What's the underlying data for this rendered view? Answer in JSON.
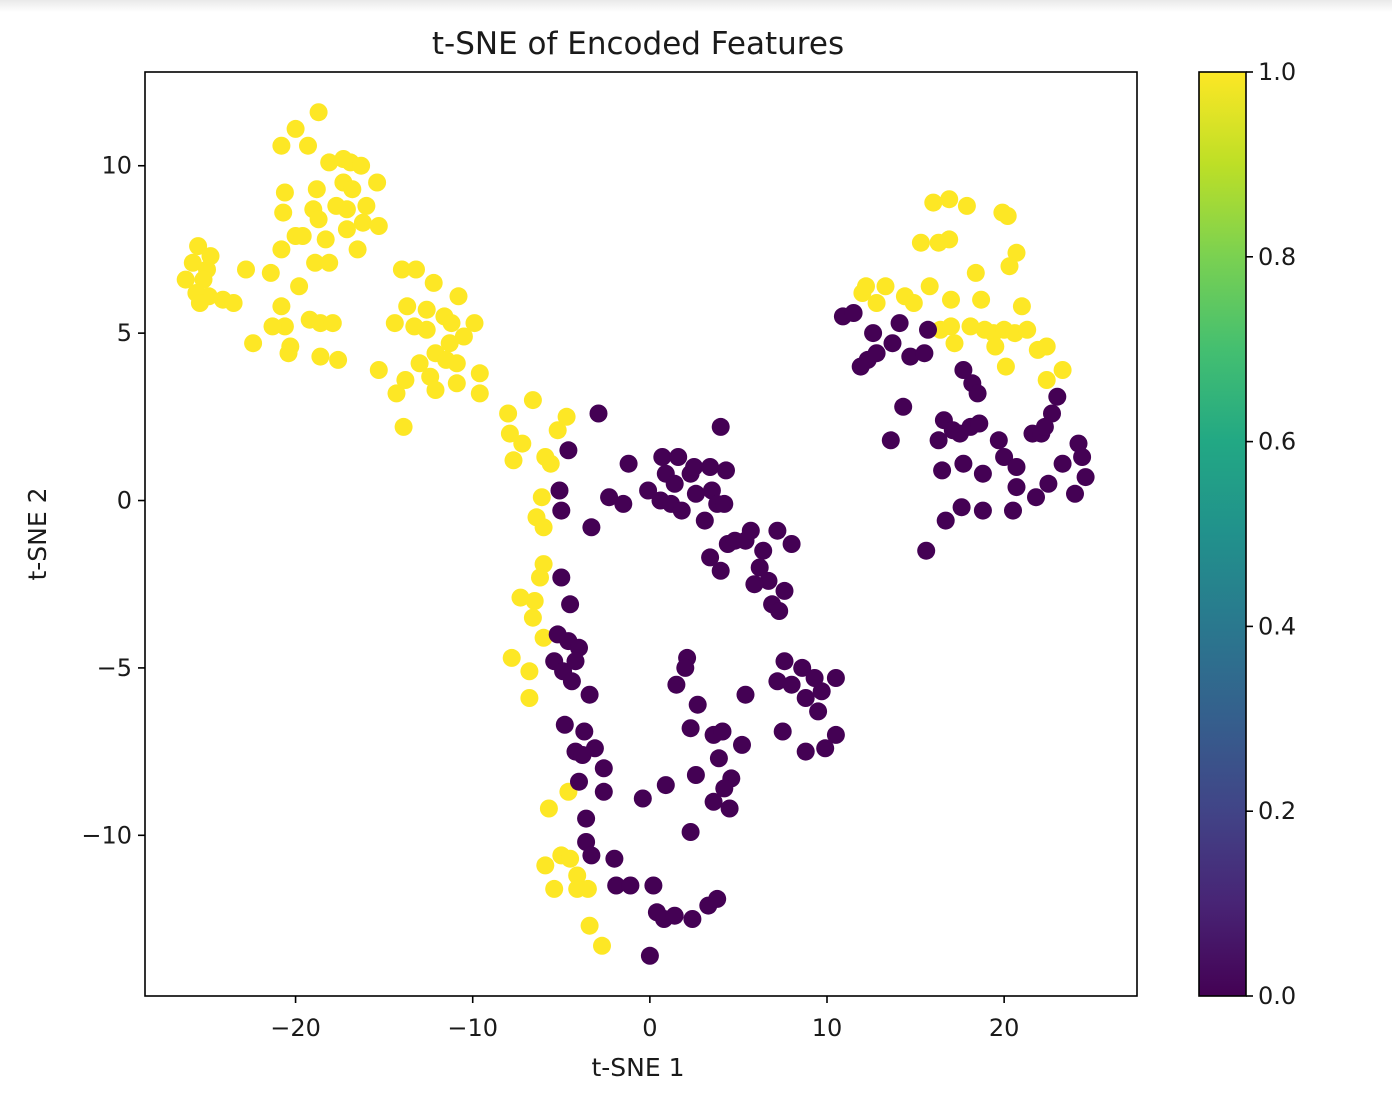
{
  "chart_data": {
    "type": "scatter",
    "title": "t-SNE of Encoded Features",
    "xlabel": "t-SNE 1",
    "ylabel": "t-SNE 2",
    "xlim": [
      -28.5,
      27.5
    ],
    "ylim": [
      -14.8,
      12.8
    ],
    "x_ticks": [
      -20,
      -10,
      0,
      10,
      20
    ],
    "y_ticks": [
      -10,
      -5,
      0,
      5,
      10
    ],
    "x_tick_labels": [
      "−20",
      "−10",
      "0",
      "10",
      "20"
    ],
    "y_tick_labels": [
      "−10",
      "−5",
      "0",
      "5",
      "10"
    ],
    "colorbar": {
      "colormap": "viridis",
      "range": [
        0.0,
        1.0
      ],
      "ticks": [
        0.0,
        0.2,
        0.4,
        0.6,
        0.8,
        1.0
      ],
      "tick_labels": [
        "0.0",
        "0.2",
        "0.4",
        "0.6",
        "0.8",
        "1.0"
      ]
    },
    "colors": {
      "label_0": "#440154",
      "label_1": "#fde725"
    },
    "grid": false,
    "series": [
      {
        "label_value": 1,
        "points": [
          [
            -18.7,
            11.6
          ],
          [
            -20.0,
            11.1
          ],
          [
            -19.3,
            10.6
          ],
          [
            -20.8,
            10.6
          ],
          [
            -18.1,
            10.1
          ],
          [
            -17.3,
            10.2
          ],
          [
            -16.9,
            10.1
          ],
          [
            -16.3,
            10.0
          ],
          [
            -15.4,
            9.5
          ],
          [
            -17.3,
            9.5
          ],
          [
            -16.8,
            9.3
          ],
          [
            -18.8,
            9.3
          ],
          [
            -20.6,
            9.2
          ],
          [
            -17.7,
            8.8
          ],
          [
            -16.0,
            8.8
          ],
          [
            -19.0,
            8.7
          ],
          [
            -20.7,
            8.6
          ],
          [
            -18.7,
            8.4
          ],
          [
            -17.1,
            8.7
          ],
          [
            -16.2,
            8.3
          ],
          [
            -15.3,
            8.2
          ],
          [
            -17.1,
            8.1
          ],
          [
            -20.0,
            7.9
          ],
          [
            -19.6,
            7.9
          ],
          [
            -18.3,
            7.8
          ],
          [
            -16.5,
            7.5
          ],
          [
            -20.8,
            7.5
          ],
          [
            -18.9,
            7.1
          ],
          [
            -18.1,
            7.1
          ],
          [
            -25.5,
            7.6
          ],
          [
            -24.8,
            7.3
          ],
          [
            -25.8,
            7.1
          ],
          [
            -25.0,
            6.9
          ],
          [
            -25.2,
            6.6
          ],
          [
            -26.2,
            6.6
          ],
          [
            -25.6,
            6.2
          ],
          [
            -24.9,
            6.1
          ],
          [
            -25.4,
            5.9
          ],
          [
            -24.1,
            6.0
          ],
          [
            -23.5,
            5.9
          ],
          [
            -22.8,
            6.9
          ],
          [
            -21.4,
            6.8
          ],
          [
            -20.8,
            5.8
          ],
          [
            -19.8,
            6.4
          ],
          [
            -20.6,
            5.2
          ],
          [
            -21.3,
            5.2
          ],
          [
            -19.2,
            5.4
          ],
          [
            -18.6,
            5.3
          ],
          [
            -17.9,
            5.3
          ],
          [
            -20.3,
            4.6
          ],
          [
            -20.4,
            4.4
          ],
          [
            -18.6,
            4.3
          ],
          [
            -17.6,
            4.2
          ],
          [
            -22.4,
            4.7
          ],
          [
            -14.0,
            6.9
          ],
          [
            -13.2,
            6.9
          ],
          [
            -12.2,
            6.5
          ],
          [
            -13.7,
            5.8
          ],
          [
            -12.6,
            5.7
          ],
          [
            -14.4,
            5.3
          ],
          [
            -13.3,
            5.2
          ],
          [
            -12.6,
            5.1
          ],
          [
            -11.6,
            5.5
          ],
          [
            -11.2,
            5.3
          ],
          [
            -10.8,
            6.1
          ],
          [
            -9.9,
            5.3
          ],
          [
            -10.5,
            4.9
          ],
          [
            -11.3,
            4.7
          ],
          [
            -12.1,
            4.4
          ],
          [
            -11.5,
            4.2
          ],
          [
            -10.9,
            4.1
          ],
          [
            -13.0,
            4.1
          ],
          [
            -15.3,
            3.9
          ],
          [
            -13.8,
            3.6
          ],
          [
            -14.3,
            3.2
          ],
          [
            -12.4,
            3.7
          ],
          [
            -12.1,
            3.3
          ],
          [
            -10.9,
            3.5
          ],
          [
            -9.6,
            3.8
          ],
          [
            -9.6,
            3.2
          ],
          [
            -13.9,
            2.2
          ],
          [
            -8.0,
            2.6
          ],
          [
            -6.6,
            3.0
          ],
          [
            -7.9,
            2.0
          ],
          [
            -7.2,
            1.7
          ],
          [
            -5.2,
            2.1
          ],
          [
            -4.7,
            2.5
          ],
          [
            -7.7,
            1.2
          ],
          [
            -5.9,
            1.3
          ],
          [
            -5.6,
            1.1
          ],
          [
            -6.1,
            0.1
          ],
          [
            -6.4,
            -0.5
          ],
          [
            -6.0,
            -0.8
          ],
          [
            -6.0,
            -1.9
          ],
          [
            -6.2,
            -2.3
          ],
          [
            -7.3,
            -2.9
          ],
          [
            -6.5,
            -3.0
          ],
          [
            -6.6,
            -3.5
          ],
          [
            -6.0,
            -4.1
          ],
          [
            -7.8,
            -4.7
          ],
          [
            -6.8,
            -5.1
          ],
          [
            -6.8,
            -5.9
          ],
          [
            -5.7,
            -9.2
          ],
          [
            -4.6,
            -8.7
          ],
          [
            -5.9,
            -10.9
          ],
          [
            -5.0,
            -10.6
          ],
          [
            -4.5,
            -10.7
          ],
          [
            -5.4,
            -11.6
          ],
          [
            -4.1,
            -11.2
          ],
          [
            -4.1,
            -11.6
          ],
          [
            -3.5,
            -11.6
          ],
          [
            -3.4,
            -12.7
          ],
          [
            -2.7,
            -13.3
          ],
          [
            16.0,
            8.9
          ],
          [
            16.9,
            9.0
          ],
          [
            17.9,
            8.8
          ],
          [
            19.9,
            8.6
          ],
          [
            20.2,
            8.5
          ],
          [
            15.3,
            7.7
          ],
          [
            16.3,
            7.7
          ],
          [
            16.9,
            7.8
          ],
          [
            20.7,
            7.4
          ],
          [
            18.4,
            6.8
          ],
          [
            20.3,
            7.0
          ],
          [
            12.0,
            6.2
          ],
          [
            12.2,
            6.4
          ],
          [
            13.3,
            6.4
          ],
          [
            14.4,
            6.1
          ],
          [
            15.8,
            6.4
          ],
          [
            12.8,
            5.9
          ],
          [
            14.9,
            5.9
          ],
          [
            17.0,
            6.0
          ],
          [
            18.7,
            6.0
          ],
          [
            21.0,
            5.8
          ],
          [
            16.4,
            5.1
          ],
          [
            17.0,
            5.2
          ],
          [
            18.1,
            5.2
          ],
          [
            18.9,
            5.1
          ],
          [
            19.4,
            5.0
          ],
          [
            20.0,
            5.1
          ],
          [
            20.6,
            5.0
          ],
          [
            21.3,
            5.1
          ],
          [
            17.2,
            4.7
          ],
          [
            19.5,
            4.6
          ],
          [
            21.9,
            4.5
          ],
          [
            22.4,
            4.6
          ],
          [
            20.1,
            4.0
          ],
          [
            23.3,
            3.9
          ],
          [
            22.4,
            3.6
          ]
        ]
      },
      {
        "label_value": 0,
        "points": [
          [
            -2.9,
            2.6
          ],
          [
            -4.6,
            1.5
          ],
          [
            -5.1,
            0.3
          ],
          [
            -5.0,
            -0.3
          ],
          [
            -3.3,
            -0.8
          ],
          [
            -2.3,
            0.1
          ],
          [
            -1.5,
            -0.1
          ],
          [
            -1.2,
            1.1
          ],
          [
            -0.1,
            0.3
          ],
          [
            0.7,
            1.3
          ],
          [
            1.6,
            1.3
          ],
          [
            0.9,
            0.8
          ],
          [
            1.4,
            0.5
          ],
          [
            2.3,
            0.8
          ],
          [
            2.5,
            1.0
          ],
          [
            3.4,
            1.0
          ],
          [
            4.0,
            2.2
          ],
          [
            4.3,
            0.9
          ],
          [
            0.6,
            0.0
          ],
          [
            1.2,
            -0.1
          ],
          [
            1.8,
            -0.3
          ],
          [
            2.6,
            0.2
          ],
          [
            3.1,
            -0.6
          ],
          [
            3.5,
            0.3
          ],
          [
            3.8,
            -0.1
          ],
          [
            4.2,
            -0.1
          ],
          [
            4.4,
            -1.3
          ],
          [
            4.8,
            -1.2
          ],
          [
            5.4,
            -1.2
          ],
          [
            5.7,
            -0.9
          ],
          [
            6.4,
            -1.5
          ],
          [
            7.2,
            -0.9
          ],
          [
            8.0,
            -1.3
          ],
          [
            3.4,
            -1.7
          ],
          [
            4.0,
            -2.1
          ],
          [
            6.2,
            -2.0
          ],
          [
            6.7,
            -2.4
          ],
          [
            5.9,
            -2.5
          ],
          [
            7.6,
            -2.7
          ],
          [
            6.9,
            -3.1
          ],
          [
            7.3,
            -3.3
          ],
          [
            -5.0,
            -2.3
          ],
          [
            -4.5,
            -3.1
          ],
          [
            -5.2,
            -4.0
          ],
          [
            -4.6,
            -4.2
          ],
          [
            -4.0,
            -4.4
          ],
          [
            -5.4,
            -4.8
          ],
          [
            -4.2,
            -4.8
          ],
          [
            -4.9,
            -5.1
          ],
          [
            -4.4,
            -5.4
          ],
          [
            -3.4,
            -5.8
          ],
          [
            -4.8,
            -6.7
          ],
          [
            -3.7,
            -6.9
          ],
          [
            -4.2,
            -7.5
          ],
          [
            -3.1,
            -7.4
          ],
          [
            -3.8,
            -7.6
          ],
          [
            -2.6,
            -8.0
          ],
          [
            -4.0,
            -8.4
          ],
          [
            -2.6,
            -8.7
          ],
          [
            -3.6,
            -9.5
          ],
          [
            -3.6,
            -10.2
          ],
          [
            -3.3,
            -10.6
          ],
          [
            -2.0,
            -10.7
          ],
          [
            -1.9,
            -11.5
          ],
          [
            -1.1,
            -11.5
          ],
          [
            0.2,
            -11.5
          ],
          [
            -0.4,
            -8.9
          ],
          [
            0.9,
            -8.5
          ],
          [
            2.1,
            -4.7
          ],
          [
            2.0,
            -5.0
          ],
          [
            1.5,
            -5.5
          ],
          [
            2.7,
            -6.1
          ],
          [
            2.3,
            -6.8
          ],
          [
            3.6,
            -7.0
          ],
          [
            4.1,
            -6.9
          ],
          [
            5.2,
            -7.3
          ],
          [
            3.9,
            -7.7
          ],
          [
            2.6,
            -8.2
          ],
          [
            4.6,
            -8.3
          ],
          [
            4.2,
            -8.6
          ],
          [
            3.6,
            -9.0
          ],
          [
            4.5,
            -9.2
          ],
          [
            2.3,
            -9.9
          ],
          [
            5.4,
            -5.8
          ],
          [
            7.6,
            -4.8
          ],
          [
            8.6,
            -5.0
          ],
          [
            9.3,
            -5.3
          ],
          [
            7.2,
            -5.4
          ],
          [
            8.0,
            -5.5
          ],
          [
            8.8,
            -5.9
          ],
          [
            9.7,
            -5.7
          ],
          [
            10.5,
            -5.3
          ],
          [
            9.5,
            -6.3
          ],
          [
            10.5,
            -7.0
          ],
          [
            7.5,
            -6.9
          ],
          [
            8.8,
            -7.5
          ],
          [
            9.9,
            -7.4
          ],
          [
            0.4,
            -12.3
          ],
          [
            0.8,
            -12.5
          ],
          [
            1.4,
            -12.4
          ],
          [
            2.4,
            -12.5
          ],
          [
            3.3,
            -12.1
          ],
          [
            3.8,
            -11.9
          ],
          [
            0.0,
            -13.6
          ],
          [
            10.9,
            5.5
          ],
          [
            11.5,
            5.6
          ],
          [
            12.6,
            5.0
          ],
          [
            14.1,
            5.3
          ],
          [
            15.7,
            5.1
          ],
          [
            12.3,
            4.2
          ],
          [
            12.8,
            4.4
          ],
          [
            13.7,
            4.7
          ],
          [
            14.7,
            4.3
          ],
          [
            15.5,
            4.4
          ],
          [
            11.9,
            4.0
          ],
          [
            17.7,
            3.9
          ],
          [
            18.2,
            3.5
          ],
          [
            18.5,
            3.2
          ],
          [
            14.3,
            2.8
          ],
          [
            13.6,
            1.8
          ],
          [
            16.3,
            1.8
          ],
          [
            16.6,
            2.4
          ],
          [
            17.1,
            2.1
          ],
          [
            17.5,
            2.0
          ],
          [
            18.1,
            2.2
          ],
          [
            18.6,
            2.3
          ],
          [
            19.7,
            1.8
          ],
          [
            20.0,
            1.3
          ],
          [
            20.7,
            1.0
          ],
          [
            21.6,
            2.0
          ],
          [
            22.1,
            2.0
          ],
          [
            22.7,
            2.6
          ],
          [
            23.0,
            3.1
          ],
          [
            22.3,
            2.2
          ],
          [
            16.5,
            0.9
          ],
          [
            17.7,
            1.1
          ],
          [
            18.8,
            0.8
          ],
          [
            20.7,
            0.4
          ],
          [
            22.5,
            0.5
          ],
          [
            23.3,
            1.1
          ],
          [
            24.2,
            1.7
          ],
          [
            24.4,
            1.3
          ],
          [
            24.6,
            0.7
          ],
          [
            24.0,
            0.2
          ],
          [
            21.8,
            0.1
          ],
          [
            20.5,
            -0.3
          ],
          [
            18.8,
            -0.3
          ],
          [
            17.6,
            -0.2
          ],
          [
            16.7,
            -0.6
          ],
          [
            15.6,
            -1.5
          ]
        ]
      }
    ]
  }
}
